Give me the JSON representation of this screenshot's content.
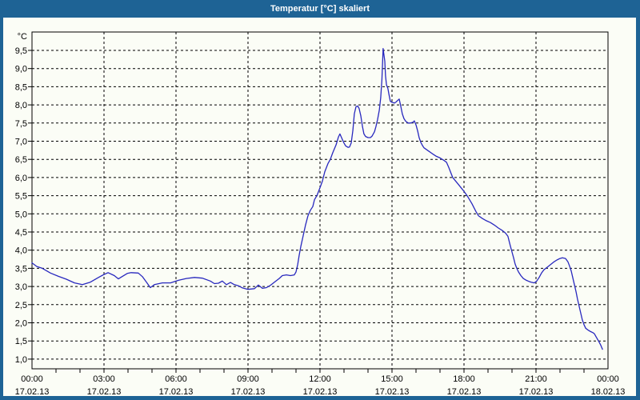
{
  "colors": {
    "titlebar": "#1E6395",
    "frame": "#1E6395",
    "background": "#FBFDF6",
    "line": "#2828BE",
    "grid": "#000000",
    "text": "#000000"
  },
  "chart_data": {
    "type": "line",
    "title": "Temperatur [°C] skaliert",
    "y_unit_label": "°C",
    "ylim": [
      0.75,
      10.0
    ],
    "xlim_hours": [
      0,
      24
    ],
    "grid": "dashed",
    "legend_position": "none",
    "y_ticks": [
      {
        "value": 9.5,
        "label": "9,5"
      },
      {
        "value": 9.0,
        "label": "9,0"
      },
      {
        "value": 8.5,
        "label": "8,5"
      },
      {
        "value": 8.0,
        "label": "8,0"
      },
      {
        "value": 7.5,
        "label": "7,5"
      },
      {
        "value": 7.0,
        "label": "7,0"
      },
      {
        "value": 6.5,
        "label": "6,5"
      },
      {
        "value": 6.0,
        "label": "6,0"
      },
      {
        "value": 5.5,
        "label": "5,5"
      },
      {
        "value": 5.0,
        "label": "5,0"
      },
      {
        "value": 4.5,
        "label": "4,5"
      },
      {
        "value": 4.0,
        "label": "4,0"
      },
      {
        "value": 3.5,
        "label": "3,5"
      },
      {
        "value": 3.0,
        "label": "3,0"
      },
      {
        "value": 2.5,
        "label": "2,5"
      },
      {
        "value": 2.0,
        "label": "2,0"
      },
      {
        "value": 1.5,
        "label": "1,5"
      },
      {
        "value": 1.0,
        "label": "1,0"
      }
    ],
    "x_ticks": [
      {
        "hour": 0,
        "time": "00:00",
        "date": "17.02.13"
      },
      {
        "hour": 3,
        "time": "03:00",
        "date": "17.02.13"
      },
      {
        "hour": 6,
        "time": "06:00",
        "date": "17.02.13"
      },
      {
        "hour": 9,
        "time": "09:00",
        "date": "17.02.13"
      },
      {
        "hour": 12,
        "time": "12:00",
        "date": "17.02.13"
      },
      {
        "hour": 15,
        "time": "15:00",
        "date": "17.02.13"
      },
      {
        "hour": 18,
        "time": "18:00",
        "date": "17.02.13"
      },
      {
        "hour": 21,
        "time": "21:00",
        "date": "17.02.13"
      },
      {
        "hour": 24,
        "time": "00:00",
        "date": "18.02.13"
      }
    ],
    "minor_x_tick_every_hours": 1,
    "series": [
      {
        "name": "Temperatur",
        "points": [
          [
            0.0,
            3.65
          ],
          [
            0.2,
            3.55
          ],
          [
            0.43,
            3.5
          ],
          [
            0.77,
            3.37
          ],
          [
            1.1,
            3.28
          ],
          [
            1.43,
            3.2
          ],
          [
            1.77,
            3.1
          ],
          [
            2.1,
            3.05
          ],
          [
            2.43,
            3.12
          ],
          [
            2.77,
            3.25
          ],
          [
            3.0,
            3.33
          ],
          [
            3.17,
            3.38
          ],
          [
            3.43,
            3.3
          ],
          [
            3.6,
            3.21
          ],
          [
            3.77,
            3.28
          ],
          [
            3.97,
            3.36
          ],
          [
            4.13,
            3.38
          ],
          [
            4.43,
            3.37
          ],
          [
            4.6,
            3.27
          ],
          [
            4.77,
            3.12
          ],
          [
            4.93,
            2.97
          ],
          [
            5.1,
            3.05
          ],
          [
            5.43,
            3.1
          ],
          [
            5.77,
            3.1
          ],
          [
            6.1,
            3.17
          ],
          [
            6.43,
            3.22
          ],
          [
            6.77,
            3.25
          ],
          [
            7.1,
            3.23
          ],
          [
            7.43,
            3.15
          ],
          [
            7.6,
            3.08
          ],
          [
            7.77,
            3.09
          ],
          [
            7.93,
            3.15
          ],
          [
            8.1,
            3.05
          ],
          [
            8.27,
            3.11
          ],
          [
            8.43,
            3.05
          ],
          [
            8.6,
            3.02
          ],
          [
            8.77,
            2.96
          ],
          [
            9.0,
            2.92
          ],
          [
            9.27,
            2.94
          ],
          [
            9.43,
            3.04
          ],
          [
            9.6,
            2.95
          ],
          [
            9.77,
            2.97
          ],
          [
            9.93,
            3.03
          ],
          [
            10.1,
            3.12
          ],
          [
            10.3,
            3.22
          ],
          [
            10.43,
            3.3
          ],
          [
            10.6,
            3.32
          ],
          [
            10.77,
            3.3
          ],
          [
            10.93,
            3.32
          ],
          [
            11.0,
            3.4
          ],
          [
            11.07,
            3.6
          ],
          [
            11.13,
            3.85
          ],
          [
            11.2,
            4.1
          ],
          [
            11.3,
            4.4
          ],
          [
            11.4,
            4.7
          ],
          [
            11.5,
            4.95
          ],
          [
            11.6,
            5.1
          ],
          [
            11.7,
            5.2
          ],
          [
            11.77,
            5.39
          ],
          [
            11.87,
            5.5
          ],
          [
            12.0,
            5.72
          ],
          [
            12.1,
            5.9
          ],
          [
            12.2,
            6.16
          ],
          [
            12.33,
            6.38
          ],
          [
            12.43,
            6.5
          ],
          [
            12.53,
            6.68
          ],
          [
            12.67,
            6.9
          ],
          [
            12.77,
            7.12
          ],
          [
            12.83,
            7.2
          ],
          [
            12.93,
            7.05
          ],
          [
            13.0,
            6.95
          ],
          [
            13.07,
            6.87
          ],
          [
            13.17,
            6.83
          ],
          [
            13.23,
            6.84
          ],
          [
            13.3,
            6.95
          ],
          [
            13.37,
            7.3
          ],
          [
            13.43,
            7.75
          ],
          [
            13.5,
            7.95
          ],
          [
            13.57,
            7.97
          ],
          [
            13.63,
            7.9
          ],
          [
            13.7,
            7.7
          ],
          [
            13.77,
            7.4
          ],
          [
            13.83,
            7.2
          ],
          [
            13.9,
            7.13
          ],
          [
            14.0,
            7.1
          ],
          [
            14.1,
            7.1
          ],
          [
            14.17,
            7.14
          ],
          [
            14.27,
            7.26
          ],
          [
            14.33,
            7.4
          ],
          [
            14.4,
            7.6
          ],
          [
            14.47,
            7.85
          ],
          [
            14.53,
            8.2
          ],
          [
            14.58,
            8.7
          ],
          [
            14.63,
            9.55
          ],
          [
            14.7,
            9.2
          ],
          [
            14.73,
            8.8
          ],
          [
            14.77,
            8.55
          ],
          [
            14.83,
            8.45
          ],
          [
            14.87,
            8.3
          ],
          [
            14.93,
            8.1
          ],
          [
            15.0,
            8.07
          ],
          [
            15.1,
            8.05
          ],
          [
            15.17,
            8.08
          ],
          [
            15.23,
            8.12
          ],
          [
            15.3,
            8.16
          ],
          [
            15.37,
            7.95
          ],
          [
            15.43,
            7.75
          ],
          [
            15.5,
            7.62
          ],
          [
            15.57,
            7.55
          ],
          [
            15.67,
            7.5
          ],
          [
            15.77,
            7.5
          ],
          [
            15.87,
            7.52
          ],
          [
            15.93,
            7.56
          ],
          [
            16.0,
            7.45
          ],
          [
            16.07,
            7.28
          ],
          [
            16.13,
            7.1
          ],
          [
            16.2,
            6.97
          ],
          [
            16.27,
            6.88
          ],
          [
            16.33,
            6.82
          ],
          [
            16.5,
            6.74
          ],
          [
            16.67,
            6.66
          ],
          [
            16.83,
            6.59
          ],
          [
            17.0,
            6.54
          ],
          [
            17.17,
            6.47
          ],
          [
            17.27,
            6.42
          ],
          [
            17.37,
            6.27
          ],
          [
            17.47,
            6.1
          ],
          [
            17.53,
            6.0
          ],
          [
            17.73,
            5.84
          ],
          [
            18.0,
            5.62
          ],
          [
            18.13,
            5.5
          ],
          [
            18.33,
            5.28
          ],
          [
            18.5,
            5.06
          ],
          [
            18.6,
            4.95
          ],
          [
            18.77,
            4.87
          ],
          [
            18.93,
            4.81
          ],
          [
            19.1,
            4.76
          ],
          [
            19.27,
            4.69
          ],
          [
            19.43,
            4.61
          ],
          [
            19.6,
            4.54
          ],
          [
            19.73,
            4.47
          ],
          [
            19.83,
            4.38
          ],
          [
            19.93,
            4.12
          ],
          [
            20.0,
            3.95
          ],
          [
            20.07,
            3.78
          ],
          [
            20.13,
            3.62
          ],
          [
            20.2,
            3.5
          ],
          [
            20.27,
            3.4
          ],
          [
            20.37,
            3.3
          ],
          [
            20.47,
            3.22
          ],
          [
            20.6,
            3.17
          ],
          [
            20.7,
            3.14
          ],
          [
            20.8,
            3.12
          ],
          [
            20.93,
            3.1
          ],
          [
            21.03,
            3.15
          ],
          [
            21.13,
            3.25
          ],
          [
            21.23,
            3.37
          ],
          [
            21.33,
            3.46
          ],
          [
            21.47,
            3.53
          ],
          [
            21.6,
            3.6
          ],
          [
            21.73,
            3.67
          ],
          [
            21.87,
            3.73
          ],
          [
            22.0,
            3.77
          ],
          [
            22.1,
            3.79
          ],
          [
            22.23,
            3.77
          ],
          [
            22.33,
            3.68
          ],
          [
            22.4,
            3.56
          ],
          [
            22.47,
            3.42
          ],
          [
            22.53,
            3.25
          ],
          [
            22.6,
            3.05
          ],
          [
            22.67,
            2.85
          ],
          [
            22.73,
            2.65
          ],
          [
            22.8,
            2.45
          ],
          [
            22.87,
            2.25
          ],
          [
            22.93,
            2.08
          ],
          [
            23.0,
            1.95
          ],
          [
            23.07,
            1.85
          ],
          [
            23.17,
            1.8
          ],
          [
            23.27,
            1.76
          ],
          [
            23.37,
            1.73
          ],
          [
            23.43,
            1.7
          ],
          [
            23.5,
            1.62
          ],
          [
            23.57,
            1.54
          ],
          [
            23.63,
            1.47
          ],
          [
            23.7,
            1.38
          ],
          [
            23.77,
            1.27
          ]
        ]
      }
    ]
  }
}
